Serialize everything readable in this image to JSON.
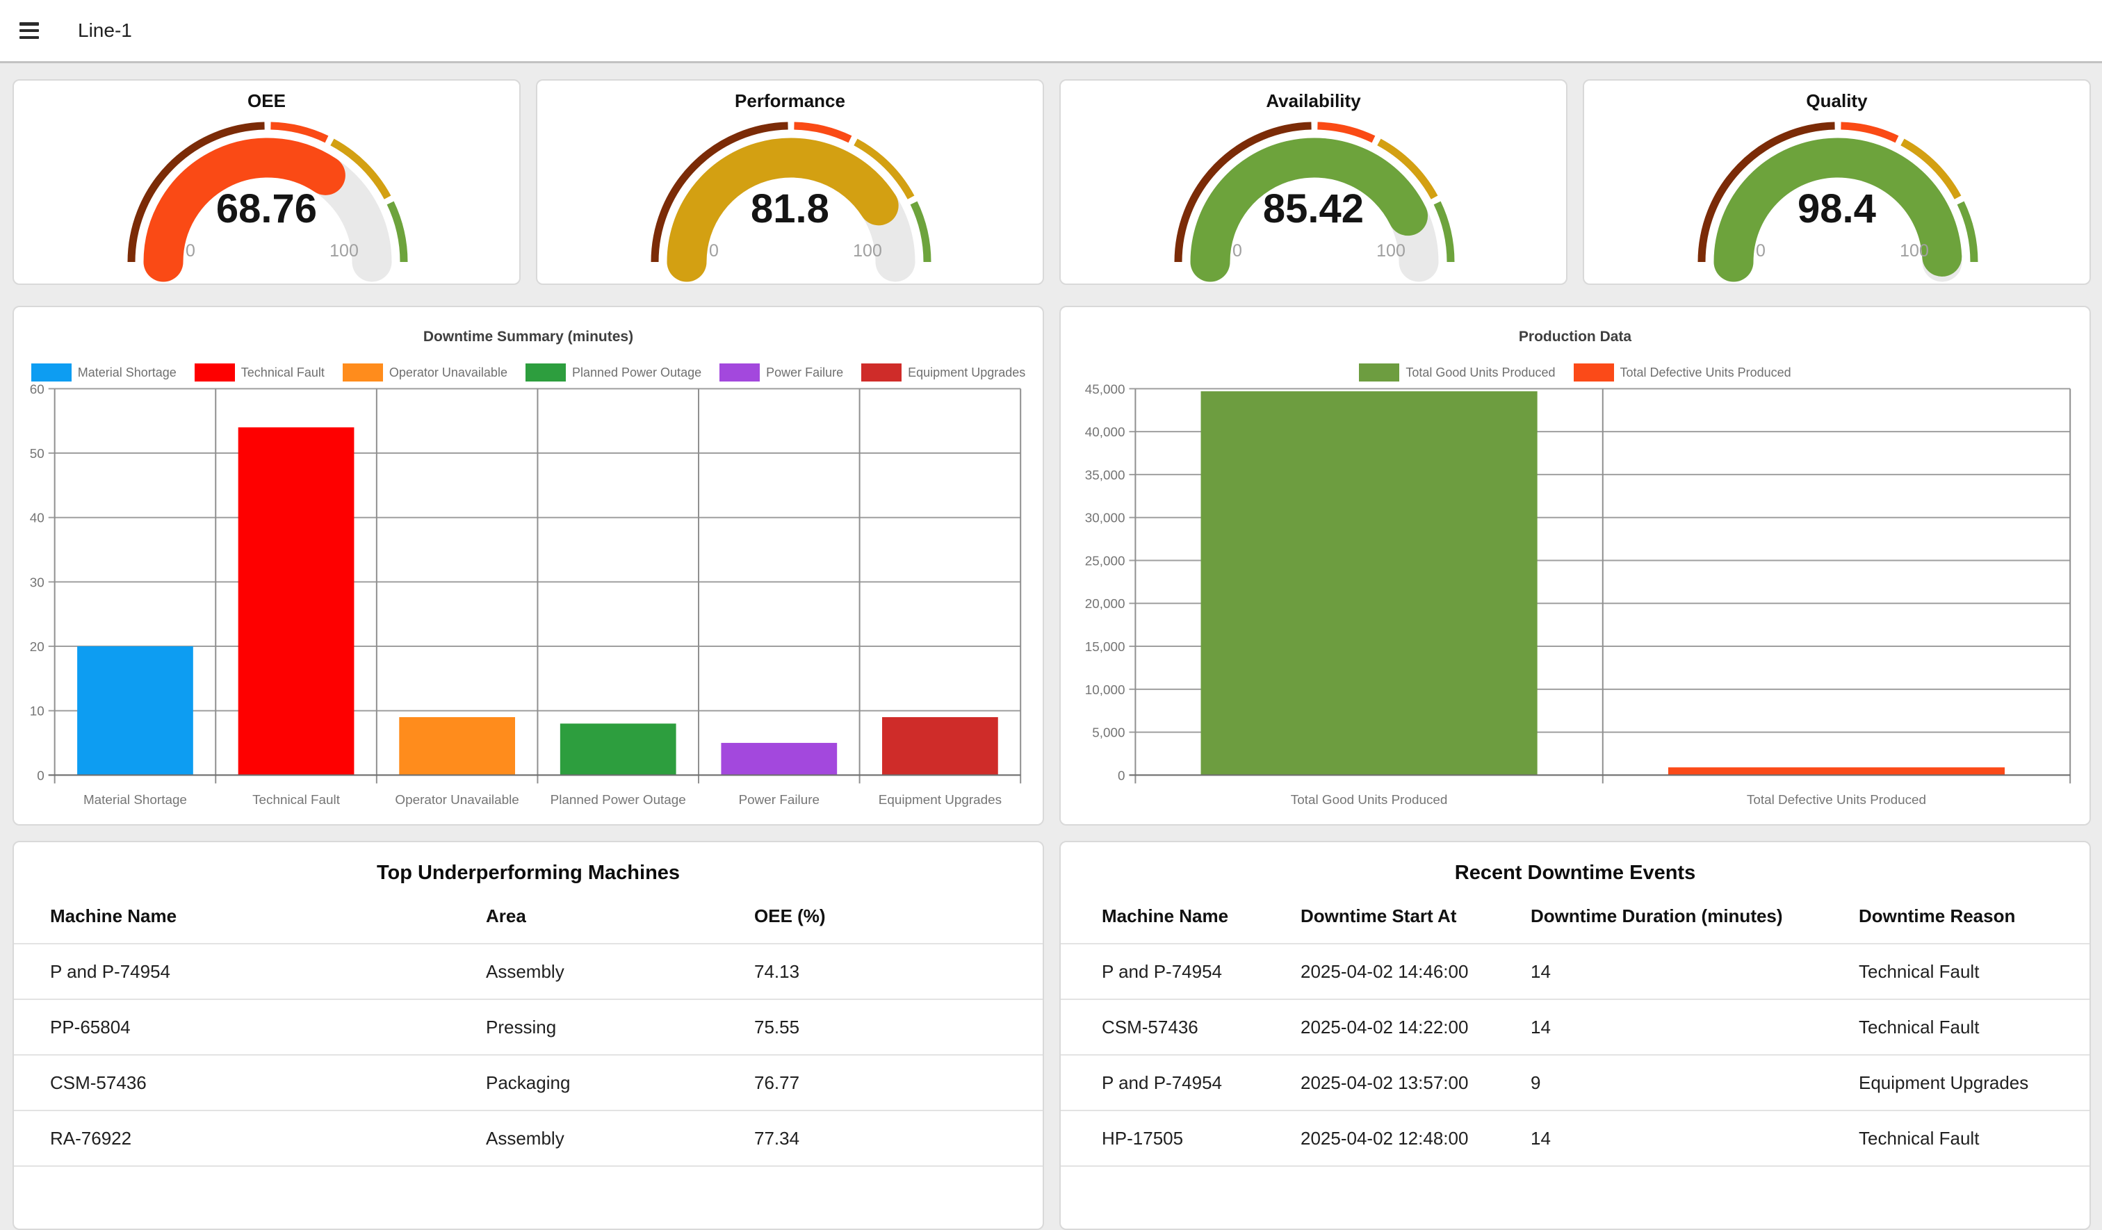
{
  "app": {
    "title": "Line-1",
    "menu_icon": "hamburger-menu"
  },
  "gauges": {
    "common": {
      "min_label": "0",
      "max_label": "100",
      "track_color": "#e9e9e9",
      "bands": [
        {
          "from": 0,
          "to": 50,
          "color": "#7b2b07"
        },
        {
          "from": 50,
          "to": 65,
          "color": "#fa4a15"
        },
        {
          "from": 65,
          "to": 85,
          "color": "#d3a012"
        },
        {
          "from": 85,
          "to": 100,
          "color": "#6da33c"
        }
      ]
    },
    "items": [
      {
        "title": "OEE",
        "value": "68.76",
        "value_num": 68.76,
        "arc_color": "#fa4a15"
      },
      {
        "title": "Performance",
        "value": "81.8",
        "value_num": 81.8,
        "arc_color": "#d3a012"
      },
      {
        "title": "Availability",
        "value": "85.42",
        "value_num": 85.42,
        "arc_color": "#6da33c"
      },
      {
        "title": "Quality",
        "value": "98.4",
        "value_num": 98.4,
        "arc_color": "#6da33c"
      }
    ]
  },
  "chart_data": [
    {
      "type": "bar",
      "title": "Downtime Summary (minutes)",
      "categories": [
        "Material Shortage",
        "Technical Fault",
        "Operator Unavailable",
        "Planned Power Outage",
        "Power Failure",
        "Equipment Upgrades"
      ],
      "values": [
        20,
        54,
        9,
        8,
        5,
        9
      ],
      "colors": [
        "#0d9df2",
        "#fe0000",
        "#ff8c1c",
        "#2d9e3e",
        "#a348dd",
        "#cf2c29"
      ],
      "xlabel": "",
      "ylabel": "",
      "ylim": [
        0,
        60
      ],
      "ytick_step": 10,
      "grid": true,
      "legend_position": "top"
    },
    {
      "type": "bar",
      "title": "Production Data",
      "categories": [
        "Total Good Units Produced",
        "Total Defective Units Produced"
      ],
      "values": [
        44700,
        900
      ],
      "colors": [
        "#6d9d40",
        "#fb4a18"
      ],
      "xlabel": "",
      "ylabel": "",
      "ylim": [
        0,
        45000
      ],
      "ytick_step": 5000,
      "grid": true,
      "legend_position": "top",
      "ytick_format": "thousands-comma"
    }
  ],
  "tables": [
    {
      "title": "Top Underperforming Machines",
      "columns": [
        "Machine Name",
        "Area",
        "OEE (%)"
      ],
      "rows": [
        [
          "P and P-74954",
          "Assembly",
          "74.13"
        ],
        [
          "PP-65804",
          "Pressing",
          "75.55"
        ],
        [
          "CSM-57436",
          "Packaging",
          "76.77"
        ],
        [
          "RA-76922",
          "Assembly",
          "77.34"
        ]
      ]
    },
    {
      "title": "Recent Downtime Events",
      "columns": [
        "Machine Name",
        "Downtime Start At",
        "Downtime Duration (minutes)",
        "Downtime Reason"
      ],
      "rows": [
        [
          "P and P-74954",
          "2025-04-02 14:46:00",
          "14",
          "Technical Fault"
        ],
        [
          "CSM-57436",
          "2025-04-02 14:22:00",
          "14",
          "Technical Fault"
        ],
        [
          "P and P-74954",
          "2025-04-02 13:57:00",
          "9",
          "Equipment Upgrades"
        ],
        [
          "HP-17505",
          "2025-04-02 12:48:00",
          "14",
          "Technical Fault"
        ]
      ]
    }
  ]
}
